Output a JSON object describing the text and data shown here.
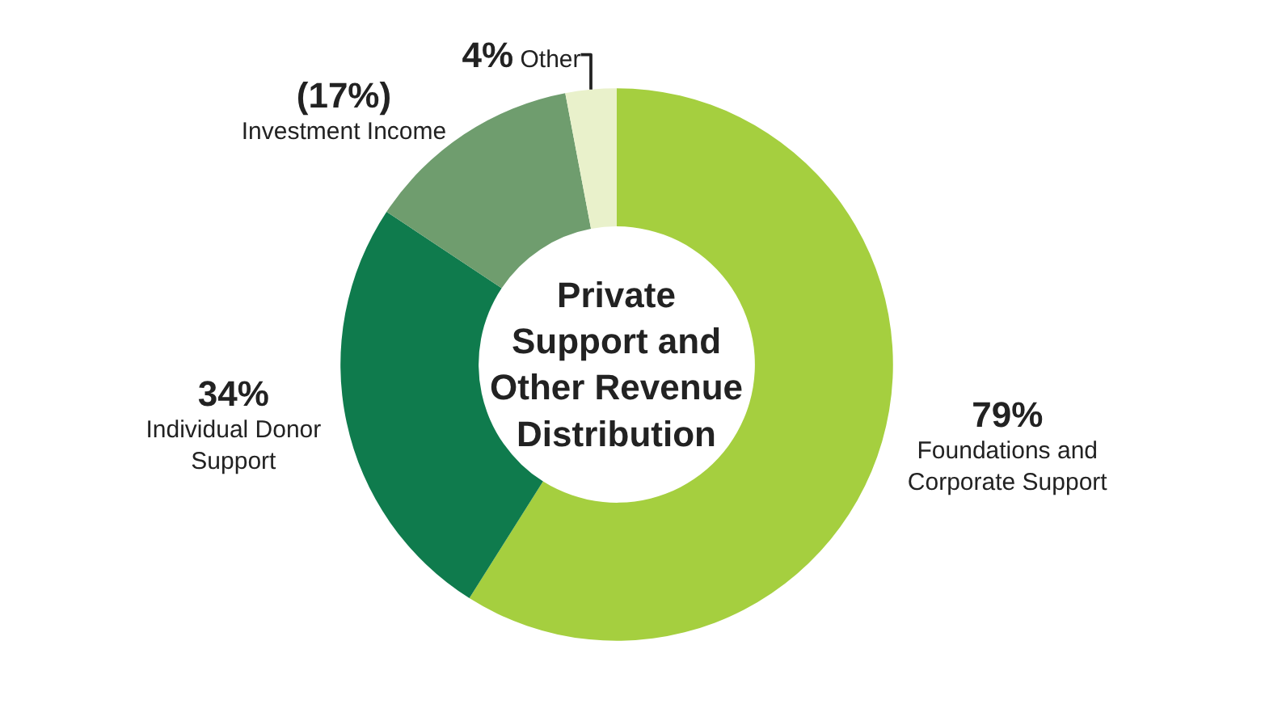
{
  "chart_data": {
    "type": "donut",
    "title": "Private Support and Other Revenue Distribution",
    "categories": [
      "Foundations and Corporate Support",
      "Individual Donor Support",
      "Investment Income",
      "Other"
    ],
    "values": [
      79,
      34,
      17,
      4
    ],
    "value_labels": [
      "79%",
      "34%",
      "(17%)",
      "4%"
    ],
    "colors": [
      "#a5cf3f",
      "#0f7b4d",
      "#6f9d6e",
      "#e9f1cb"
    ],
    "legend": false
  }
}
